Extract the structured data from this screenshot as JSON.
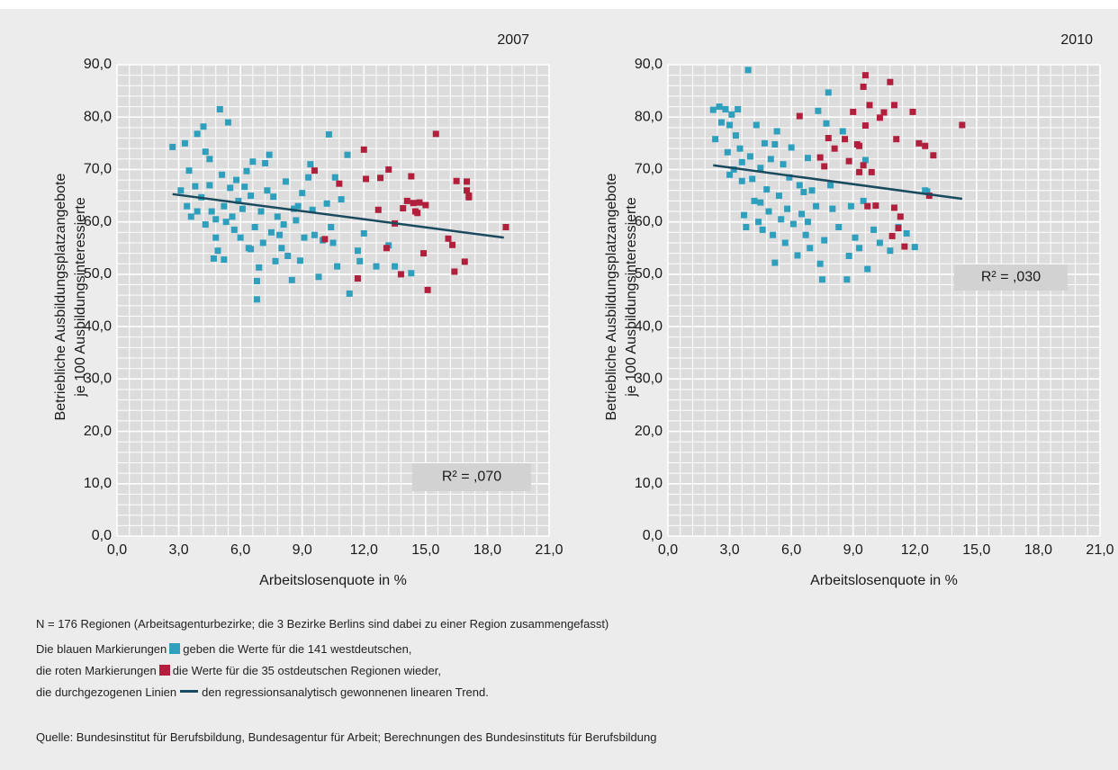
{
  "chart_data": [
    {
      "type": "scatter",
      "title": "2007",
      "xlabel": "Arbeitslosenquote in %",
      "ylabel": [
        "Betriebliche Ausbildungsplatzangebote",
        "je 100 Ausbildungsinteressierte"
      ],
      "xlim": [
        0,
        21
      ],
      "ylim": [
        0,
        90
      ],
      "xticks": [
        {
          "value": 0,
          "label": "0,0"
        },
        {
          "value": 3,
          "label": "3,0"
        },
        {
          "value": 6,
          "label": "6,0"
        },
        {
          "value": 9,
          "label": "9,0"
        },
        {
          "value": 12,
          "label": "12,0"
        },
        {
          "value": 15,
          "label": "15,0"
        },
        {
          "value": 18,
          "label": "18,0"
        },
        {
          "value": 21,
          "label": "21,0"
        }
      ],
      "yticks": [
        {
          "value": 0,
          "label": "0,0"
        },
        {
          "value": 10,
          "label": "10,0"
        },
        {
          "value": 20,
          "label": "20,0"
        },
        {
          "value": 30,
          "label": "30,0"
        },
        {
          "value": 40,
          "label": "40,0"
        },
        {
          "value": 50,
          "label": "50,0"
        },
        {
          "value": 60,
          "label": "60,0"
        },
        {
          "value": 70,
          "label": "70,0"
        },
        {
          "value": 80,
          "label": "80,0"
        },
        {
          "value": 90,
          "label": "90,0"
        }
      ],
      "grid": true,
      "annotation": "R² = ,070",
      "trend": {
        "color": "#1a4a5e",
        "x": [
          2.7,
          18.8
        ],
        "y": [
          65.3,
          57
        ]
      },
      "series": [
        {
          "color": "#2e9fbd",
          "x": [
            2.7,
            3.1,
            3.3,
            3.5,
            3.4,
            3.6,
            3.8,
            3.9,
            4.1,
            4.2,
            4.3,
            4.3,
            4.5,
            4.5,
            4.6,
            4.7,
            4.8,
            4.9,
            5.0,
            5.1,
            5.2,
            5.2,
            5.3,
            5.4,
            5.5,
            5.6,
            5.8,
            5.9,
            6.0,
            6.1,
            6.3,
            6.4,
            6.5,
            6.6,
            6.7,
            6.8,
            6.8,
            6.9,
            7.0,
            7.1,
            7.2,
            7.3,
            7.4,
            7.5,
            7.6,
            7.7,
            7.8,
            8.0,
            8.1,
            8.2,
            8.3,
            8.5,
            8.6,
            8.8,
            8.9,
            9.0,
            9.1,
            9.3,
            9.5,
            9.6,
            9.8,
            10.0,
            10.2,
            10.3,
            10.4,
            10.5,
            10.7,
            10.9,
            11.2,
            11.3,
            11.7,
            11.8,
            12.0,
            12.6,
            13.2,
            13.5,
            14.3,
            3.9,
            4.8,
            5.7,
            6.2,
            7.9,
            9.4,
            10.6,
            8.7,
            6.5
          ],
          "y": [
            74.3,
            66,
            75,
            69.8,
            63,
            61,
            66.8,
            76.8,
            64.7,
            78.2,
            73.4,
            59.5,
            72,
            67,
            62,
            53,
            57,
            54.5,
            81.5,
            69,
            63,
            52.8,
            60,
            79,
            66.5,
            61,
            68,
            64,
            57,
            62.5,
            69.7,
            55,
            65,
            71.5,
            59,
            45.2,
            48.7,
            51.3,
            62,
            56,
            71.2,
            66,
            72.8,
            58,
            64.8,
            52.5,
            61,
            55,
            59.5,
            67.7,
            53.5,
            48.9,
            62.5,
            63,
            52.6,
            65.5,
            57,
            68.5,
            62.3,
            57.5,
            49.5,
            56.5,
            63.5,
            76.7,
            59,
            56,
            51.5,
            64.3,
            72.8,
            46.3,
            54.5,
            52.5,
            57.8,
            51.5,
            55.5,
            51.5,
            50.2,
            62,
            60.5,
            58.5,
            66.7,
            57.5,
            71,
            68.5,
            60.3,
            54.8
          ]
        },
        {
          "color": "#b01f3c",
          "x": [
            10.1,
            9.6,
            10.8,
            11.7,
            12.0,
            12.1,
            12.8,
            13.2,
            13.1,
            13.5,
            13.9,
            14.1,
            14.4,
            14.3,
            14.5,
            14.6,
            14.9,
            15.1,
            15.0,
            15.5,
            16.1,
            16.3,
            16.4,
            16.5,
            16.9,
            17.0,
            17.0,
            17.1,
            17.1,
            18.9,
            13.8,
            12.7,
            14.7
          ],
          "y": [
            56.7,
            69.8,
            67.3,
            49.2,
            73.8,
            68.2,
            68.4,
            70,
            55,
            59.7,
            62.6,
            64,
            63.6,
            68.7,
            62,
            61.7,
            54,
            47,
            63.2,
            76.8,
            56.8,
            55.6,
            50.5,
            67.8,
            52.4,
            67.7,
            66,
            65,
            64.7,
            59,
            50,
            62.3,
            63.7
          ]
        }
      ]
    },
    {
      "type": "scatter",
      "title": "2010",
      "xlabel": "Arbeitslosenquote in %",
      "ylabel": [
        "Betriebliche Ausbildungsplatzangebote",
        "je 100 Ausbildungsinteressierte"
      ],
      "xlim": [
        0,
        21
      ],
      "ylim": [
        0,
        90
      ],
      "xticks": [
        {
          "value": 0,
          "label": "0,0"
        },
        {
          "value": 3,
          "label": "3,0"
        },
        {
          "value": 6,
          "label": "6,0"
        },
        {
          "value": 9,
          "label": "9,0"
        },
        {
          "value": 12,
          "label": "12,0"
        },
        {
          "value": 15,
          "label": "15,0"
        },
        {
          "value": 18,
          "label": "18,0"
        },
        {
          "value": 21,
          "label": "21,0"
        }
      ],
      "yticks": [
        {
          "value": 0,
          "label": "0,0"
        },
        {
          "value": 10,
          "label": "10,0"
        },
        {
          "value": 20,
          "label": "20,0"
        },
        {
          "value": 30,
          "label": "30,0"
        },
        {
          "value": 40,
          "label": "40,0"
        },
        {
          "value": 50,
          "label": "50,0"
        },
        {
          "value": 60,
          "label": "60,0"
        },
        {
          "value": 70,
          "label": "70,0"
        },
        {
          "value": 80,
          "label": "80,0"
        },
        {
          "value": 90,
          "label": "90,0"
        }
      ],
      "grid": true,
      "annotation": "R² = ,030",
      "trend": {
        "color": "#1a4a5e",
        "x": [
          2.2,
          14.3
        ],
        "y": [
          70.8,
          64.4
        ]
      },
      "series": [
        {
          "color": "#2e9fbd",
          "x": [
            2.2,
            2.3,
            2.5,
            2.6,
            2.8,
            2.9,
            3.0,
            3.1,
            3.2,
            3.3,
            3.4,
            3.5,
            3.6,
            3.7,
            3.8,
            3.9,
            4.0,
            4.1,
            4.2,
            4.3,
            4.4,
            4.5,
            4.6,
            4.7,
            4.8,
            4.9,
            5.0,
            5.1,
            5.2,
            5.3,
            5.4,
            5.5,
            5.6,
            5.7,
            5.8,
            5.9,
            6.0,
            6.1,
            6.3,
            6.4,
            6.5,
            6.6,
            6.7,
            6.8,
            6.9,
            7.0,
            7.2,
            7.3,
            7.4,
            7.5,
            7.6,
            7.7,
            7.8,
            7.9,
            8.0,
            8.3,
            8.5,
            8.7,
            8.8,
            9.1,
            9.3,
            9.5,
            9.7,
            10.0,
            10.3,
            10.8,
            11.2,
            11.6,
            12.0,
            12.5,
            12.6,
            9.6,
            8.9,
            4.5,
            3.0,
            5.2,
            6.8,
            3.6
          ],
          "y": [
            81.4,
            75.8,
            82,
            79,
            81.5,
            73.3,
            78.5,
            80.5,
            70,
            76.5,
            81.5,
            74,
            67.8,
            61.3,
            59,
            89,
            72.5,
            68.2,
            64,
            78.5,
            60,
            70.3,
            58.5,
            75,
            66.2,
            62,
            72,
            57.5,
            52.2,
            77.3,
            65,
            60.5,
            71,
            56,
            62.5,
            68.5,
            74.2,
            59.6,
            53.6,
            67,
            61.5,
            65.7,
            57.5,
            60,
            55,
            66,
            63,
            81.2,
            52,
            49,
            56.5,
            78.8,
            84.7,
            67,
            62.5,
            59,
            77.3,
            49,
            53.5,
            57,
            55,
            64,
            51,
            58.5,
            56,
            54.5,
            59,
            57.8,
            55.2,
            66,
            65.8,
            71.8,
            63,
            63.7,
            69,
            74.8,
            72.2,
            71.4
          ]
        },
        {
          "color": "#b01f3c",
          "x": [
            6.4,
            7.4,
            7.6,
            7.8,
            8.1,
            8.6,
            8.8,
            9.0,
            9.2,
            9.3,
            9.5,
            9.6,
            9.6,
            9.8,
            9.9,
            9.7,
            10.1,
            10.3,
            10.5,
            10.8,
            11.0,
            11.1,
            11.0,
            10.9,
            11.2,
            11.3,
            11.5,
            11.9,
            12.2,
            12.5,
            12.7,
            12.9,
            14.3,
            9.3,
            9.5
          ],
          "y": [
            80.2,
            72.3,
            70.6,
            76,
            74,
            75.8,
            71.6,
            81,
            74.8,
            69.5,
            85.8,
            88,
            78.4,
            82.3,
            69.5,
            63,
            63.1,
            79.9,
            80.9,
            86.7,
            82.3,
            75.8,
            62.7,
            57.3,
            58.8,
            61,
            55.3,
            81,
            75,
            74.5,
            65,
            72.7,
            78.5,
            74.5,
            70.8
          ]
        }
      ]
    }
  ],
  "notes": {
    "n": "N = 176 Regionen (Arbeitsagenturbezirke; die 3 Bezirke Berlins sind dabei zu einer Region zusammengefasst)",
    "legend": [
      [
        "Die blauen Markierungen",
        "geben die Werte für die 141 westdeutschen,"
      ],
      [
        "die roten Markierungen",
        "die Werte für die 35 ostdeutschen Regionen wieder,"
      ],
      [
        "die durchgezogenen Linien",
        "den regressionsanalytisch gewonnenen linearen Trend."
      ]
    ],
    "source": "Quelle: Bundesinstitut für Berufsbildung, Bundesagentur für Arbeit; Berechnungen des Bundesinstituts für Berufsbildung"
  }
}
